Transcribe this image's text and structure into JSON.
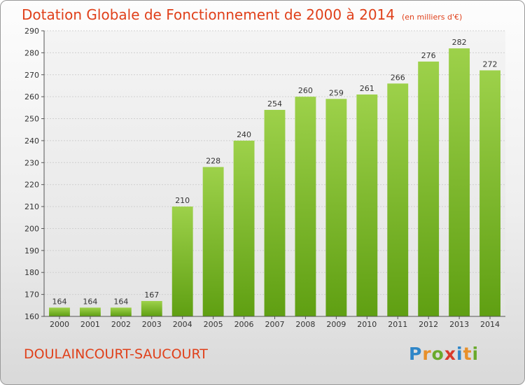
{
  "header": {
    "title": "Dotation Globale de Fonctionnement de 2000 à 2014",
    "unit": "(en milliers d'€)"
  },
  "footer": {
    "town": "DOULAINCOURT-SAUCOURT",
    "logo": [
      "P",
      "r",
      "o",
      "x",
      "i",
      "t",
      "i"
    ]
  },
  "colors": {
    "title": "#e0401a",
    "bar_top": "#9dd14a",
    "bar_bottom": "#5f9f12"
  },
  "chart_data": {
    "type": "bar",
    "title": "Dotation Globale de Fonctionnement de 2000 à 2014",
    "subtitle": "(en milliers d'€)",
    "xlabel": "",
    "ylabel": "",
    "categories": [
      "2000",
      "2001",
      "2002",
      "2003",
      "2004",
      "2005",
      "2006",
      "2007",
      "2008",
      "2009",
      "2010",
      "2011",
      "2012",
      "2013",
      "2014"
    ],
    "values": [
      164,
      164,
      164,
      167,
      210,
      228,
      240,
      254,
      260,
      259,
      261,
      266,
      276,
      282,
      272
    ],
    "ylim": [
      160,
      290
    ],
    "yticks": [
      160,
      170,
      180,
      190,
      200,
      210,
      220,
      230,
      240,
      250,
      260,
      270,
      280,
      290
    ],
    "grid": true,
    "legend": "none"
  }
}
